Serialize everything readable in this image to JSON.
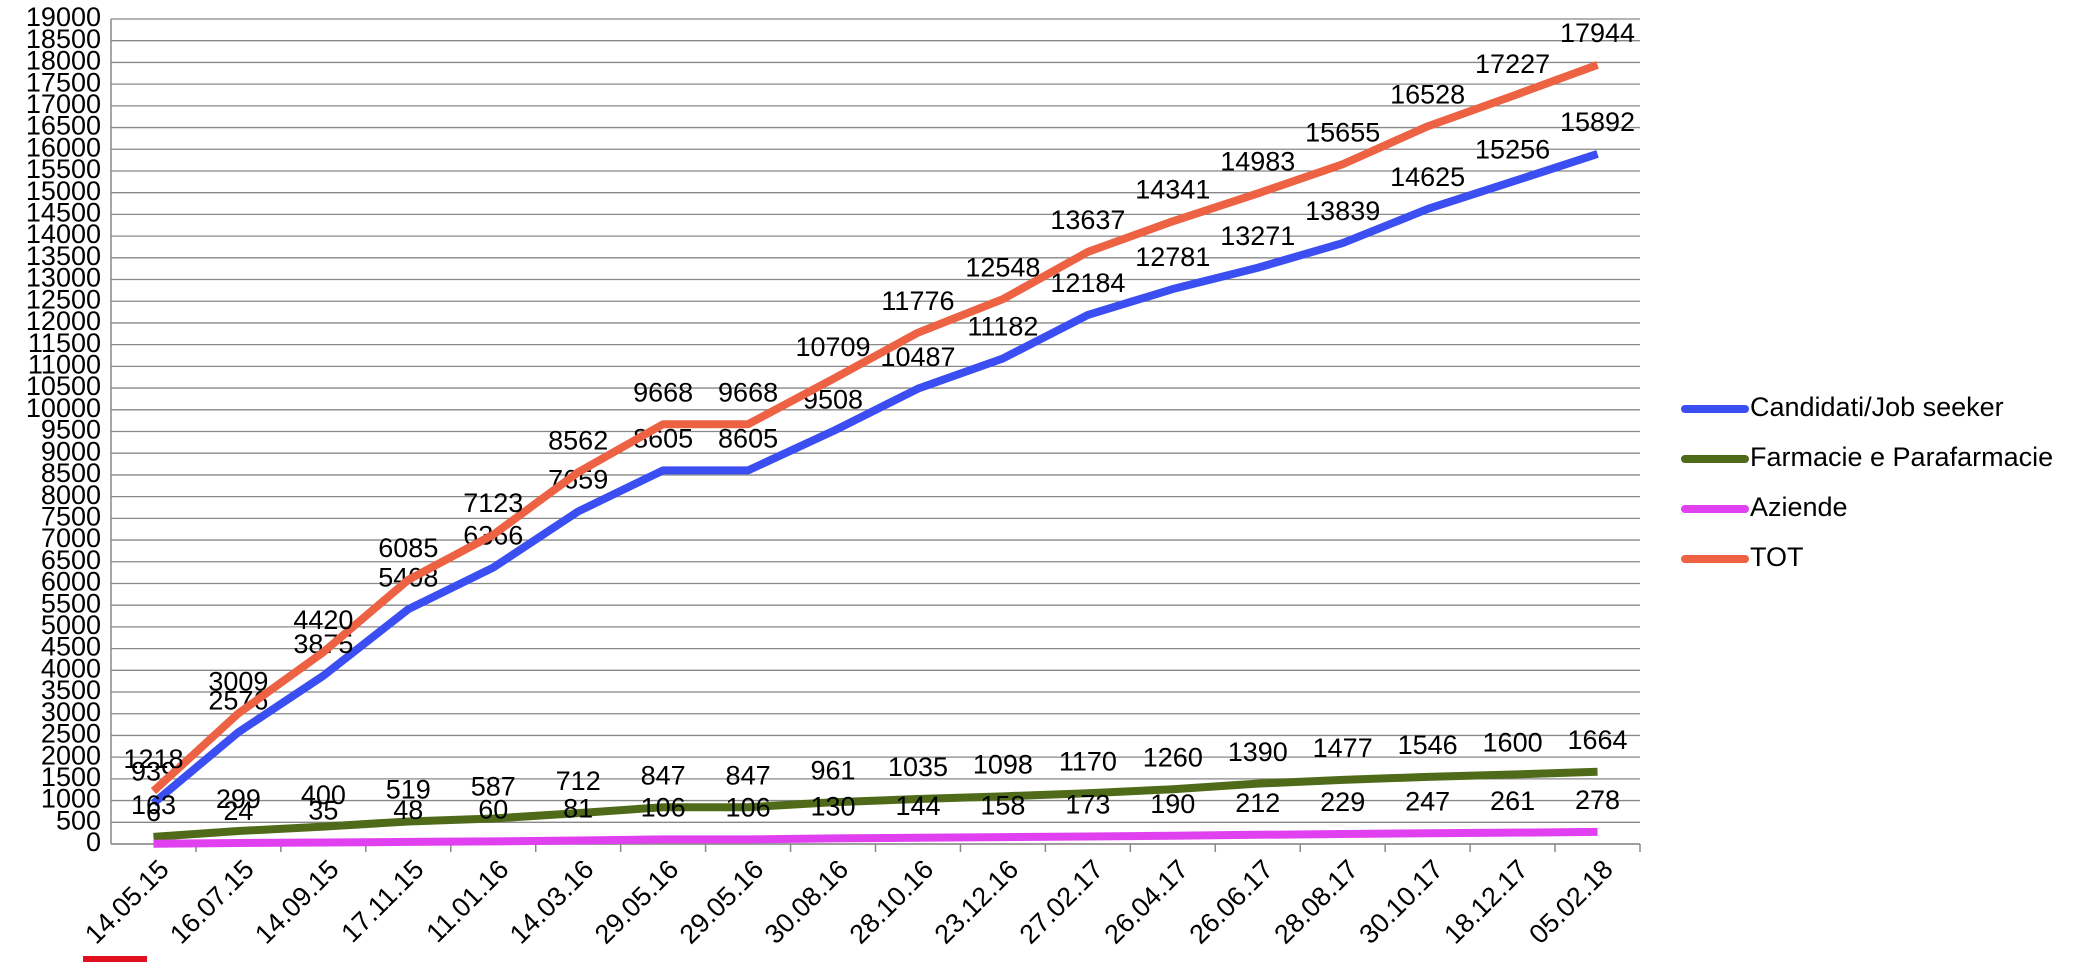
{
  "chart_data": {
    "type": "line",
    "categories": [
      "14.05.15",
      "16.07.15",
      "14.09.15",
      "17.11.15",
      "11.01.16",
      "14.03.16",
      "29.05.16",
      "29.05.16",
      "30.08.16",
      "28.10.16",
      "23.12.16",
      "27.02.17",
      "26.04.17",
      "26.06.17",
      "28.08.17",
      "30.10.17",
      "18.12.17",
      "05.02.18"
    ],
    "series": [
      {
        "name": "Candidati/Job seeker",
        "color": "#3b4ef2",
        "values": [
          939,
          2576,
          3875,
          5408,
          6366,
          7659,
          8605,
          8605,
          9508,
          10487,
          11182,
          12184,
          12781,
          13271,
          13839,
          14625,
          15256,
          15892
        ]
      },
      {
        "name": "Farmacie e Parafarmacie",
        "color": "#4f6b1a",
        "values": [
          163,
          299,
          400,
          519,
          587,
          712,
          847,
          847,
          961,
          1035,
          1098,
          1170,
          1260,
          1390,
          1477,
          1546,
          1600,
          1664
        ]
      },
      {
        "name": "Aziende",
        "color": "#e040f0",
        "values": [
          6,
          24,
          35,
          48,
          60,
          81,
          106,
          106,
          130,
          144,
          158,
          173,
          190,
          212,
          229,
          247,
          261,
          278
        ]
      },
      {
        "name": "TOT",
        "color": "#ee6244",
        "values": [
          1218,
          3009,
          4420,
          6085,
          7123,
          8562,
          9668,
          9668,
          10709,
          11776,
          12548,
          13637,
          14341,
          14983,
          15655,
          16528,
          17227,
          17944
        ]
      }
    ],
    "ylim": [
      0,
      19000
    ],
    "yticks": [
      0,
      500,
      1000,
      1500,
      2000,
      2500,
      3000,
      3500,
      4000,
      4500,
      5000,
      5500,
      6000,
      6500,
      7000,
      7500,
      8000,
      8500,
      9000,
      9500,
      10000,
      10500,
      11000,
      11500,
      12000,
      12500,
      13000,
      13500,
      14000,
      14500,
      15000,
      15500,
      16000,
      16500,
      17000,
      17500,
      18000,
      18500,
      19000
    ],
    "grid": true,
    "legend": "right"
  }
}
